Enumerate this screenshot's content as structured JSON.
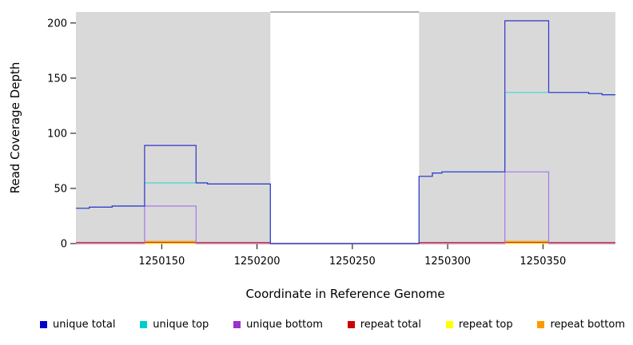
{
  "chart_data": {
    "type": "line",
    "style": "step-coverage-plot",
    "title": "",
    "xlabel": "Coordinate in Reference Genome",
    "ylabel": "Read Coverage Depth",
    "xlim": [
      1250105,
      1250388
    ],
    "ylim": [
      0,
      210
    ],
    "xticks": [
      1250150,
      1250200,
      1250250,
      1250300,
      1250350
    ],
    "yticks": [
      0,
      50,
      100,
      150,
      200
    ],
    "gap_region": [
      1250207,
      1250285
    ],
    "plot_bg": "#d9d9d9",
    "gap_bg": "#ffffff",
    "gap_border_color": "#666666",
    "series": [
      {
        "name": "repeat top",
        "color": "#ffff00",
        "points": [
          [
            1250105,
            0
          ],
          [
            1250207,
            0
          ],
          [
            1250285,
            0
          ]
        ]
      },
      {
        "name": "repeat bottom",
        "color": "#ff9900",
        "points": [
          [
            1250105,
            0
          ],
          [
            1250141,
            2
          ],
          [
            1250168,
            0
          ],
          [
            1250207,
            0
          ],
          [
            1250285,
            0
          ],
          [
            1250330,
            2
          ],
          [
            1250353,
            0
          ]
        ]
      },
      {
        "name": "repeat total",
        "color": "#cc3333",
        "points": [
          [
            1250105,
            1
          ],
          [
            1250207,
            0
          ],
          [
            1250285,
            1
          ]
        ]
      },
      {
        "name": "unique bottom",
        "color": "#a678e8",
        "points": [
          [
            1250105,
            0
          ],
          [
            1250141,
            34
          ],
          [
            1250168,
            0
          ],
          [
            1250207,
            0
          ],
          [
            1250285,
            0
          ],
          [
            1250330,
            65
          ],
          [
            1250353,
            0
          ]
        ]
      },
      {
        "name": "unique top",
        "color": "#40d6d6",
        "points": [
          [
            1250105,
            32
          ],
          [
            1250112,
            33
          ],
          [
            1250124,
            34
          ],
          [
            1250141,
            55
          ],
          [
            1250174,
            54
          ],
          [
            1250207,
            0
          ],
          [
            1250285,
            61
          ],
          [
            1250292,
            64
          ],
          [
            1250297,
            65
          ],
          [
            1250330,
            137
          ],
          [
            1250374,
            136
          ],
          [
            1250381,
            135
          ]
        ]
      },
      {
        "name": "unique total",
        "color": "#3333cc",
        "points": [
          [
            1250105,
            32
          ],
          [
            1250112,
            33
          ],
          [
            1250124,
            34
          ],
          [
            1250141,
            89
          ],
          [
            1250168,
            55
          ],
          [
            1250174,
            54
          ],
          [
            1250207,
            0
          ],
          [
            1250285,
            61
          ],
          [
            1250292,
            64
          ],
          [
            1250297,
            65
          ],
          [
            1250330,
            202
          ],
          [
            1250353,
            137
          ],
          [
            1250374,
            136
          ],
          [
            1250381,
            135
          ]
        ]
      }
    ],
    "legend": [
      {
        "label": "unique total",
        "color": "#0000cc"
      },
      {
        "label": "unique top",
        "color": "#00cccc"
      },
      {
        "label": "unique bottom",
        "color": "#9933cc"
      },
      {
        "label": "repeat total",
        "color": "#cc0000"
      },
      {
        "label": "repeat top",
        "color": "#ffff00"
      },
      {
        "label": "repeat bottom",
        "color": "#ff9900"
      }
    ],
    "legend_position": "bottom",
    "grid": false
  }
}
